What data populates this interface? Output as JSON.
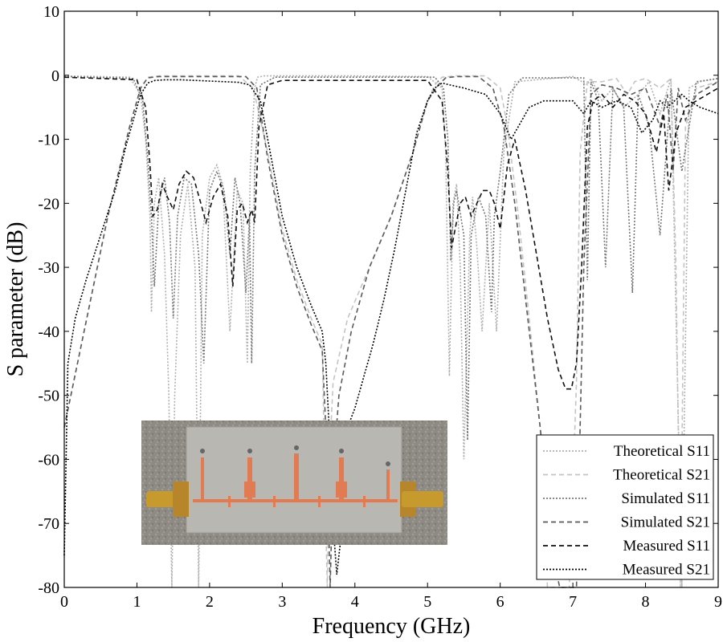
{
  "chart_data": {
    "type": "line",
    "title": "",
    "xlabel": "Frequency (GHz)",
    "ylabel": "S parameter (dB)",
    "xlim": [
      0,
      9
    ],
    "ylim": [
      -80,
      10
    ],
    "xticks": [
      "0",
      "1",
      "2",
      "3",
      "4",
      "5",
      "6",
      "7",
      "8",
      "9"
    ],
    "yticks": [
      "10",
      "0",
      "-10",
      "-20",
      "-30",
      "-40",
      "-50",
      "-60",
      "-70",
      "-80"
    ],
    "grid": false,
    "legend_position": "bottom-right",
    "inset": "photograph of the fabricated microstrip filter prototype with SMA connectors",
    "series": [
      {
        "name": "Theoretical S11",
        "style": "dotted",
        "color": "#b0b0b0",
        "x": [
          0,
          0.9,
          1.05,
          1.12,
          1.18,
          1.2,
          1.24,
          1.3,
          1.38,
          1.44,
          1.48,
          1.52,
          1.6,
          1.7,
          1.8,
          1.85,
          1.9,
          2.0,
          2.1,
          2.18,
          2.28,
          2.38,
          2.46,
          2.52,
          2.56,
          2.62,
          2.66,
          2.75,
          3.0,
          4.0,
          5.0,
          5.2,
          5.25,
          5.3,
          5.35,
          5.4,
          5.45,
          5.5,
          5.58,
          5.62,
          5.68,
          5.75,
          5.85,
          5.95,
          6.05,
          6.2,
          7.0,
          7.2,
          7.25,
          7.4,
          7.55,
          7.7,
          7.9,
          8.05,
          8.2,
          8.35,
          8.5,
          8.6,
          8.75,
          9.0
        ],
        "y": [
          -0.1,
          -0.3,
          -3,
          -10,
          -22,
          -37,
          -20,
          -16,
          -28,
          -50,
          -80,
          -50,
          -25,
          -17,
          -30,
          -80,
          -25,
          -16,
          -14,
          -17,
          -40,
          -18,
          -20,
          -45,
          -15,
          -2,
          -0.3,
          -0.1,
          -0.1,
          -0.1,
          -0.2,
          -2,
          -12,
          -47,
          -20,
          -17,
          -30,
          -60,
          -25,
          -19,
          -27,
          -40,
          -20,
          -40,
          -12,
          -1,
          -0.2,
          -1.5,
          -0.5,
          -4,
          -2,
          -5,
          -3,
          -1,
          -6,
          -0.5,
          -80,
          -2,
          -1,
          -0.5
        ]
      },
      {
        "name": "Theoretical S21",
        "style": "dashed",
        "color": "#c4c4c4",
        "x": [
          0,
          0.6,
          0.9,
          1.05,
          1.15,
          1.3,
          2.4,
          2.6,
          2.8,
          3.0,
          3.2,
          3.4,
          3.55,
          3.6,
          3.62,
          3.65,
          3.7,
          3.9,
          4.2,
          4.5,
          4.8,
          5.0,
          5.1,
          5.2,
          5.4,
          5.8,
          6.0,
          6.1,
          6.25,
          6.4,
          6.55,
          6.65,
          6.8,
          6.95,
          7.05,
          7.1,
          7.2,
          7.25,
          7.4,
          7.6,
          7.75,
          7.85,
          8.0,
          8.2,
          8.35,
          8.42,
          8.48,
          8.55,
          8.7,
          9.0
        ],
        "y": [
          -55,
          -22,
          -8,
          -2,
          -0.3,
          -0.1,
          -0.1,
          -2,
          -12,
          -24,
          -32,
          -38,
          -42,
          -70,
          -80,
          -60,
          -48,
          -38,
          -30,
          -22,
          -12,
          -4,
          -1.5,
          -0.3,
          -0.1,
          -0.1,
          -2,
          -8,
          -22,
          -38,
          -55,
          -80,
          -80,
          -80,
          -48,
          -12,
          -1,
          -1,
          -1,
          -0.5,
          -3,
          -1,
          -0.5,
          -2,
          -0.5,
          -30,
          -80,
          -8,
          -2,
          -1
        ]
      },
      {
        "name": "Simulated S11",
        "style": "dotted",
        "color": "#777777",
        "x": [
          0,
          0.95,
          1.08,
          1.15,
          1.2,
          1.24,
          1.3,
          1.38,
          1.45,
          1.5,
          1.56,
          1.65,
          1.75,
          1.85,
          1.92,
          2.0,
          2.1,
          2.2,
          2.28,
          2.35,
          2.42,
          2.5,
          2.55,
          2.58,
          2.62,
          2.7,
          2.9,
          5.1,
          5.22,
          5.28,
          5.32,
          5.36,
          5.4,
          5.5,
          5.55,
          5.6,
          5.7,
          5.8,
          5.88,
          5.92,
          6.0,
          6.12,
          6.3,
          7.15,
          7.2,
          7.25,
          7.35,
          7.45,
          7.55,
          7.7,
          7.82,
          7.9,
          8.05,
          8.2,
          8.35,
          8.5,
          8.7,
          9.0
        ],
        "y": [
          -0.2,
          -0.5,
          -4,
          -13,
          -22,
          -33,
          -20,
          -16,
          -23,
          -38,
          -22,
          -16,
          -17,
          -28,
          -45,
          -18,
          -15,
          -18,
          -28,
          -16,
          -20,
          -34,
          -22,
          -45,
          -15,
          -1.5,
          -0.3,
          -0.3,
          -2,
          -10,
          -29,
          -20,
          -18,
          -25,
          -57,
          -25,
          -19,
          -22,
          -37,
          -22,
          -15,
          -3,
          -0.4,
          -0.4,
          -32,
          -1,
          -4,
          -30,
          -2,
          -5,
          -34,
          -3,
          -8,
          -25,
          -2,
          -15,
          -1,
          -0.5
        ]
      },
      {
        "name": "Simulated S21",
        "style": "dashed",
        "color": "#5a5a5a",
        "x": [
          0,
          0.6,
          0.9,
          1.05,
          1.15,
          1.3,
          2.5,
          2.65,
          2.8,
          3.0,
          3.2,
          3.4,
          3.55,
          3.62,
          3.66,
          3.7,
          3.78,
          3.95,
          4.2,
          4.5,
          4.8,
          5.0,
          5.15,
          5.25,
          5.4,
          5.7,
          5.9,
          6.05,
          6.2,
          6.35,
          6.5,
          6.62,
          6.72,
          6.82,
          6.95,
          7.05,
          7.15,
          7.25,
          7.4,
          7.6,
          7.8,
          8.0,
          8.2,
          8.3,
          8.38,
          8.45,
          8.55,
          8.7,
          9.0
        ],
        "y": [
          -55,
          -22,
          -8,
          -2,
          -0.4,
          -0.2,
          -0.2,
          -2,
          -13,
          -25,
          -33,
          -39,
          -43,
          -60,
          -80,
          -62,
          -50,
          -40,
          -30,
          -22,
          -12,
          -4,
          -1.5,
          -0.4,
          -0.2,
          -0.2,
          -2,
          -8,
          -20,
          -35,
          -50,
          -62,
          -75,
          -80,
          -80,
          -80,
          -30,
          -3,
          -1.5,
          -2,
          -3,
          -2,
          -8,
          -3,
          -15,
          -2,
          -7,
          -3,
          -1
        ]
      },
      {
        "name": "Measured S11",
        "style": "dashed",
        "color": "#111111",
        "x": [
          0,
          1.0,
          1.12,
          1.18,
          1.22,
          1.28,
          1.35,
          1.42,
          1.5,
          1.58,
          1.68,
          1.78,
          1.88,
          1.95,
          2.05,
          2.15,
          2.25,
          2.32,
          2.38,
          2.45,
          2.52,
          2.58,
          2.62,
          2.68,
          2.8,
          3.0,
          5.0,
          5.2,
          5.28,
          5.33,
          5.38,
          5.45,
          5.52,
          5.6,
          5.68,
          5.76,
          5.85,
          5.92,
          6.0,
          6.1,
          6.2,
          6.35,
          6.5,
          6.65,
          6.8,
          6.9,
          6.98,
          7.05,
          7.12,
          7.2,
          7.28,
          7.4,
          7.55,
          7.7,
          7.85,
          8.0,
          8.15,
          8.25,
          8.32,
          8.42,
          8.55,
          8.7,
          8.85,
          9.0
        ],
        "y": [
          -0.3,
          -0.7,
          -5,
          -14,
          -22,
          -21,
          -17,
          -19,
          -21,
          -17,
          -15,
          -16,
          -20,
          -23,
          -19,
          -17,
          -22,
          -33,
          -21,
          -20,
          -23,
          -21,
          -23,
          -8,
          -1.5,
          -0.8,
          -0.8,
          -4,
          -15,
          -27,
          -24,
          -20,
          -19,
          -22,
          -20,
          -18,
          -18,
          -20,
          -24,
          -14,
          -10,
          -18,
          -28,
          -38,
          -46,
          -49,
          -49,
          -45,
          -30,
          -8,
          -4,
          -3,
          -5,
          -3,
          -4,
          -6,
          -12,
          -6,
          -18,
          -9,
          -5,
          -4,
          -3,
          -2
        ]
      },
      {
        "name": "Measured S21",
        "style": "dotted",
        "color": "#000000",
        "x": [
          0,
          0.05,
          0.15,
          0.3,
          0.5,
          0.7,
          0.85,
          0.95,
          1.05,
          1.15,
          1.25,
          1.4,
          1.6,
          1.8,
          2.0,
          2.2,
          2.4,
          2.55,
          2.7,
          2.85,
          3.0,
          3.2,
          3.4,
          3.55,
          3.6,
          3.65,
          3.7,
          3.75,
          3.8,
          3.85,
          3.9,
          4.0,
          4.1,
          4.25,
          4.4,
          4.55,
          4.7,
          4.85,
          5.0,
          5.1,
          5.2,
          5.3,
          5.5,
          5.8,
          6.0,
          6.15,
          6.25,
          6.4,
          6.6,
          6.8,
          7.0,
          7.15,
          7.25,
          7.4,
          7.6,
          7.8,
          7.95,
          8.1,
          8.2,
          8.3,
          8.4,
          8.5,
          8.6,
          8.75,
          9.0
        ],
        "y": [
          -75,
          -45,
          -38,
          -32,
          -25,
          -18,
          -11,
          -7,
          -3,
          -1.2,
          -0.8,
          -0.7,
          -0.7,
          -0.8,
          -0.9,
          -1.0,
          -1.1,
          -1.5,
          -4,
          -13,
          -22,
          -30,
          -36,
          -40,
          -45,
          -56,
          -70,
          -78,
          -73,
          -62,
          -55,
          -52,
          -48,
          -42,
          -35,
          -27,
          -18,
          -9,
          -4,
          -2,
          -1.2,
          -1.5,
          -2,
          -3,
          -6,
          -10,
          -8,
          -5,
          -4,
          -4,
          -4,
          -6,
          -4,
          -5,
          -4,
          -5,
          -9,
          -7,
          -4,
          -5,
          -4,
          -3,
          -4,
          -5,
          -6
        ]
      }
    ]
  }
}
